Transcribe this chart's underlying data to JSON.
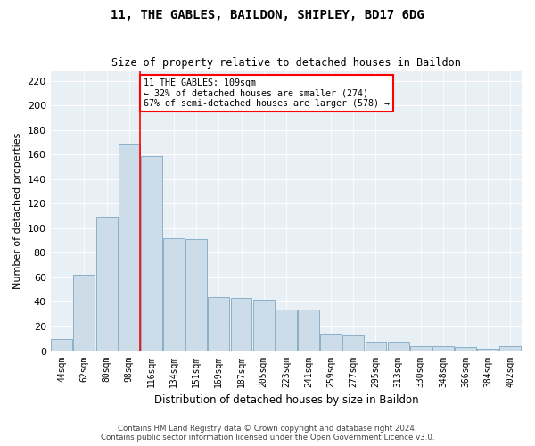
{
  "title": "11, THE GABLES, BAILDON, SHIPLEY, BD17 6DG",
  "subtitle": "Size of property relative to detached houses in Baildon",
  "xlabel": "Distribution of detached houses by size in Baildon",
  "ylabel": "Number of detached properties",
  "bar_color": "#ccdce8",
  "bar_edge_color": "#8ab0c8",
  "background_color": "#e8eff5",
  "categories": [
    "44sqm",
    "62sqm",
    "80sqm",
    "98sqm",
    "116sqm",
    "134sqm",
    "151sqm",
    "169sqm",
    "187sqm",
    "205sqm",
    "223sqm",
    "241sqm",
    "259sqm",
    "277sqm",
    "295sqm",
    "313sqm",
    "330sqm",
    "348sqm",
    "366sqm",
    "384sqm",
    "402sqm"
  ],
  "values": [
    10,
    62,
    109,
    169,
    159,
    92,
    91,
    44,
    43,
    42,
    34,
    34,
    14,
    13,
    8,
    8,
    4,
    4,
    3,
    2,
    4
  ],
  "ylim": [
    0,
    228
  ],
  "yticks": [
    0,
    20,
    40,
    60,
    80,
    100,
    120,
    140,
    160,
    180,
    200,
    220
  ],
  "redline_index": 3.5,
  "annotation_text": "11 THE GABLES: 109sqm\n← 32% of detached houses are smaller (274)\n67% of semi-detached houses are larger (578) →",
  "footer1": "Contains HM Land Registry data © Crown copyright and database right 2024.",
  "footer2": "Contains public sector information licensed under the Open Government Licence v3.0."
}
